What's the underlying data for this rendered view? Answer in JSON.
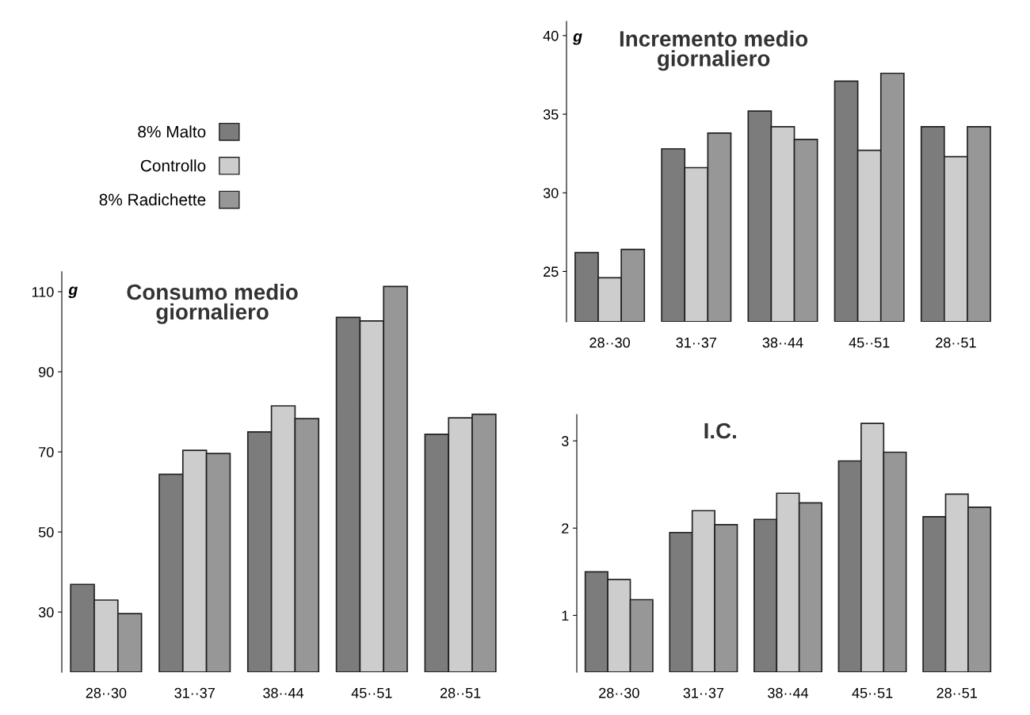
{
  "chart_data": [
    {
      "type": "bar",
      "title": "Consumo medio\ngiornaliero",
      "ylabel": "g",
      "categories": [
        "28··30",
        "31··37",
        "38··44",
        "45··51",
        "28··51"
      ],
      "ylim": [
        15,
        115
      ],
      "yticks": [
        30,
        50,
        70,
        90,
        110
      ],
      "legend": "top left",
      "grid": false,
      "series": [
        {
          "name": "8% Malto",
          "color": "#7c7c7c",
          "values": [
            36.9,
            64.4,
            75.0,
            103.6,
            74.4
          ]
        },
        {
          "name": "Controllo",
          "color": "#cdcdcd",
          "values": [
            33.0,
            70.4,
            81.5,
            102.7,
            78.5
          ]
        },
        {
          "name": "8% Radichette",
          "color": "#979797",
          "values": [
            29.6,
            69.6,
            78.3,
            111.3,
            79.4
          ]
        }
      ]
    },
    {
      "type": "bar",
      "title": "Incremento medio\ngiornaliero",
      "ylabel": "g",
      "categories": [
        "28··30",
        "31··37",
        "38··44",
        "45··51",
        "28··51"
      ],
      "ylim": [
        21.8,
        40.9
      ],
      "yticks": [
        25,
        30,
        35,
        40
      ],
      "grid": false,
      "series": [
        {
          "color": "#7c7c7c",
          "values": [
            26.2,
            32.8,
            35.2,
            37.1,
            34.2
          ]
        },
        {
          "color": "#cdcdcd",
          "values": [
            24.6,
            31.6,
            34.2,
            32.7,
            32.3
          ]
        },
        {
          "color": "#979797",
          "values": [
            26.4,
            33.8,
            33.4,
            37.6,
            34.2
          ]
        }
      ]
    },
    {
      "type": "bar",
      "title": "I.C.",
      "categories": [
        "28··30",
        "31··37",
        "38··44",
        "45··51",
        "28··51"
      ],
      "ylim": [
        0.35,
        3.3
      ],
      "yticks": [
        1,
        2,
        3
      ],
      "grid": false,
      "series": [
        {
          "color": "#7c7c7c",
          "values": [
            1.5,
            1.95,
            2.1,
            2.77,
            2.13
          ]
        },
        {
          "color": "#cdcdcd",
          "values": [
            1.41,
            2.2,
            2.4,
            3.2,
            2.39
          ]
        },
        {
          "color": "#979797",
          "values": [
            1.18,
            2.04,
            2.29,
            2.87,
            2.24
          ]
        }
      ]
    }
  ]
}
